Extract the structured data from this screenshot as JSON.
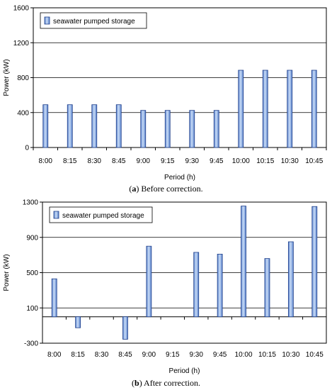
{
  "chart_data": [
    {
      "type": "bar",
      "caption_label": "a",
      "caption_text": "Before correction.",
      "xlabel": "Period (h)",
      "ylabel": "Power (kW)",
      "ylim": [
        0,
        1600
      ],
      "yticks": [
        0,
        400,
        800,
        1200,
        1600
      ],
      "grid": true,
      "legend_position": "top-left",
      "categories": [
        "8:00",
        "8:15",
        "8:30",
        "8:45",
        "9:00",
        "9:15",
        "9:30",
        "9:45",
        "10:00",
        "10:15",
        "10:30",
        "10:45"
      ],
      "series": [
        {
          "name": "seawater pumped storage",
          "values": [
            490,
            490,
            490,
            490,
            425,
            425,
            425,
            425,
            885,
            885,
            885,
            885
          ]
        }
      ]
    },
    {
      "type": "bar",
      "caption_label": "b",
      "caption_text": "After correction.",
      "xlabel": "Period (h)",
      "ylabel": "Power (kW)",
      "ylim": [
        -300,
        1300
      ],
      "yticks": [
        -300,
        100,
        500,
        900,
        1300
      ],
      "grid": true,
      "legend_position": "top-left",
      "categories": [
        "8:00",
        "8:15",
        "8:30",
        "8:45",
        "9:00",
        "9:15",
        "9:30",
        "9:45",
        "10:00",
        "10:15",
        "10:30",
        "10:45"
      ],
      "series": [
        {
          "name": "seawater pumped storage",
          "values": [
            430,
            -125,
            0,
            -255,
            800,
            0,
            730,
            710,
            1255,
            660,
            850,
            1250
          ]
        }
      ]
    }
  ],
  "colors": {
    "bar_fill": "#8fb3e8",
    "bar_edge": "#1f3f8a",
    "grid": "#000000"
  }
}
